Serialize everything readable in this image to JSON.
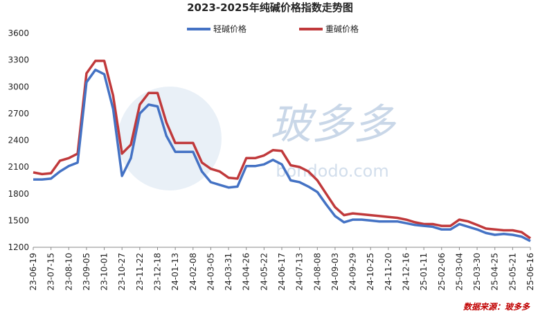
{
  "chart_data": {
    "type": "line",
    "title": "2023-2025年纯碱价格指数走势图",
    "source": "数据来源：玻多多",
    "watermark": "玻多多",
    "watermark_url": "bondodo.com",
    "categories": [
      "23-06-19",
      null,
      "23-07-15",
      null,
      "23-08-10",
      null,
      "23-09-05",
      null,
      "23-10-01",
      null,
      "23-10-27",
      null,
      "23-11-22",
      null,
      "23-12-18",
      null,
      "24-01-13",
      null,
      "24-02-08",
      null,
      "24-03-05",
      null,
      "24-03-31",
      null,
      "24-04-26",
      null,
      "24-05-22",
      null,
      "24-06-17",
      null,
      "24-07-13",
      null,
      "24-08-08",
      null,
      "24-09-03",
      null,
      "24-09-29",
      null,
      "24-10-25",
      null,
      "24-11-20",
      null,
      "24-12-16",
      null,
      "25-01-11",
      null,
      "25-02-06",
      null,
      "25-03-04",
      null,
      "25-03-30",
      null,
      "25-04-25",
      null,
      "25-05-21",
      null,
      "25-06-16"
    ],
    "series": [
      {
        "name": "轻碱价格",
        "color": "#4472c4",
        "values": [
          1960,
          1960,
          1970,
          2050,
          2110,
          2150,
          3050,
          3190,
          3140,
          2750,
          2000,
          2200,
          2700,
          2800,
          2780,
          2450,
          2270,
          2270,
          2270,
          2050,
          1930,
          1900,
          1870,
          1880,
          2110,
          2110,
          2130,
          2180,
          2130,
          1950,
          1930,
          1880,
          1820,
          1680,
          1550,
          1480,
          1510,
          1510,
          1500,
          1490,
          1490,
          1490,
          1470,
          1450,
          1440,
          1430,
          1400,
          1400,
          1460,
          1430,
          1400,
          1360,
          1340,
          1350,
          1340,
          1320,
          1270
        ]
      },
      {
        "name": "重碱价格",
        "color": "#c0393b",
        "values": [
          2040,
          2020,
          2030,
          2170,
          2200,
          2250,
          3150,
          3290,
          3290,
          2900,
          2250,
          2350,
          2800,
          2930,
          2930,
          2600,
          2370,
          2370,
          2370,
          2150,
          2080,
          2050,
          1980,
          1970,
          2200,
          2200,
          2230,
          2290,
          2280,
          2120,
          2100,
          2050,
          1950,
          1800,
          1650,
          1560,
          1580,
          1570,
          1560,
          1550,
          1540,
          1530,
          1510,
          1480,
          1460,
          1460,
          1440,
          1440,
          1510,
          1490,
          1450,
          1410,
          1400,
          1390,
          1390,
          1370,
          1300
        ]
      }
    ],
    "ylim": [
      1200,
      3600
    ],
    "yticks": [
      1200,
      1500,
      1800,
      2100,
      2400,
      2700,
      3000,
      3300,
      3600
    ],
    "grid": false
  }
}
